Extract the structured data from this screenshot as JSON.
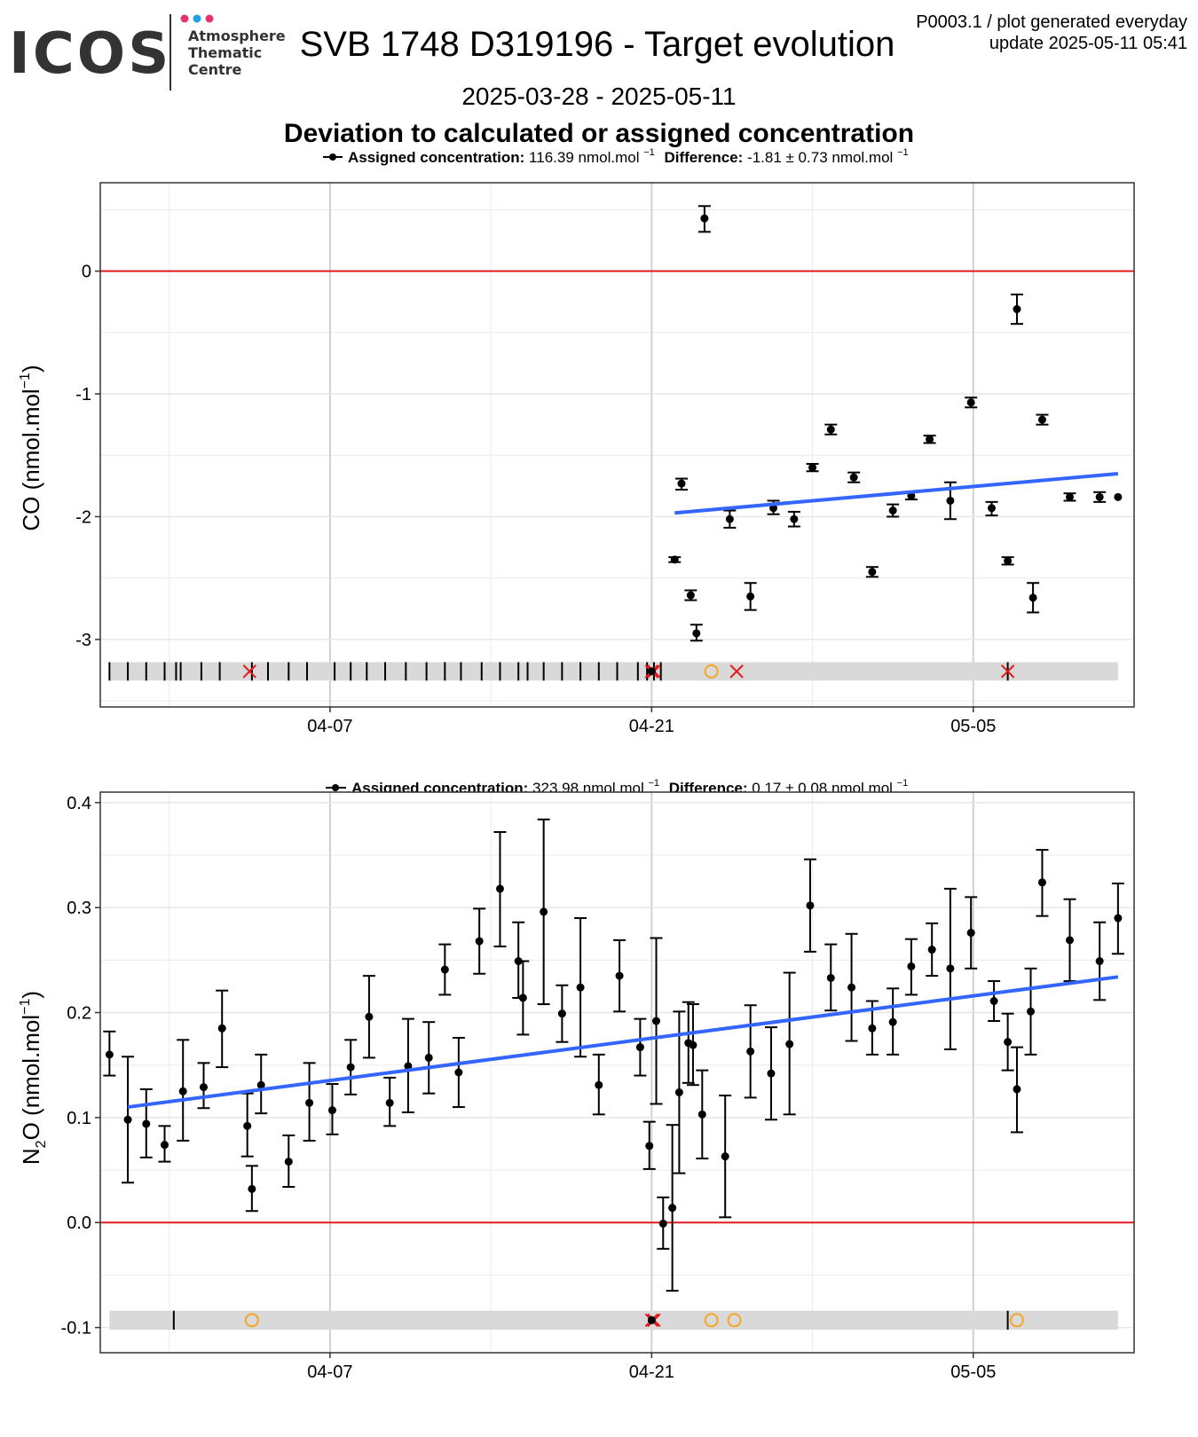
{
  "header": {
    "logo_text": "ICOS",
    "centre_lines": [
      "Atmosphere",
      "Thematic",
      "Centre"
    ],
    "title": "SVB 1748 D319196 - Target evolution",
    "daterange": "2025-03-28 - 2025-05-11",
    "meta_line1": "P0003.1 / plot generated everyday",
    "meta_line2": "update  2025-05-11 05:41",
    "subtitle": "Deviation to calculated or assigned concentration",
    "logo_dot_colors": [
      "#e6336f",
      "#1aa3e0",
      "#e6336f"
    ]
  },
  "colors": {
    "zero_line": "#e41a1c",
    "trend": "#3366ff",
    "points": "#000000",
    "flag_red": "#e41a1c",
    "flag_orange": "#f5a623",
    "band": "#d9d9d9",
    "grid": "#ebebeb"
  },
  "chart_data": [
    {
      "type": "scatter",
      "legend": {
        "label": "Assigned concentration:",
        "value": "116.39 nmol.mol",
        "unit_sup": "−1",
        "diff_label": "Difference:",
        "diff_value": "-1.81 ± 0.73 nmol.mol",
        "diff_sup": "−1"
      },
      "ylabel_main": "CO (nmol.mol",
      "ylabel_sup": "−1",
      "ylabel_end": ")",
      "xlim": [
        "2025-03-28",
        "2025-05-12"
      ],
      "ylim": [
        -3.55,
        0.72
      ],
      "x_ticks": [
        {
          "x": 10.0,
          "label": "04-07"
        },
        {
          "x": 24.0,
          "label": "04-21"
        },
        {
          "x": 38.0,
          "label": "05-05"
        }
      ],
      "y_ticks": [
        {
          "y": 0,
          "label": "0"
        },
        {
          "y": -1,
          "label": "-1"
        },
        {
          "y": -2,
          "label": "-2"
        },
        {
          "y": -3,
          "label": "-3"
        }
      ],
      "zero_line": 0,
      "trend": {
        "x": [
          25.0,
          44.3
        ],
        "y": [
          -1.97,
          -1.65
        ]
      },
      "points": [
        {
          "x": 24.0,
          "y": -3.26,
          "lo": -3.26,
          "hi": -3.26
        },
        {
          "x": 25.0,
          "y": -2.35,
          "lo": -2.37,
          "hi": -2.33
        },
        {
          "x": 25.3,
          "y": -1.73,
          "lo": -1.78,
          "hi": -1.69
        },
        {
          "x": 25.7,
          "y": -2.64,
          "lo": -2.68,
          "hi": -2.6
        },
        {
          "x": 25.95,
          "y": -2.95,
          "lo": -3.01,
          "hi": -2.88
        },
        {
          "x": 26.3,
          "y": 0.43,
          "lo": 0.32,
          "hi": 0.53
        },
        {
          "x": 27.4,
          "y": -2.02,
          "lo": -2.09,
          "hi": -1.95
        },
        {
          "x": 28.3,
          "y": -2.65,
          "lo": -2.76,
          "hi": -2.54
        },
        {
          "x": 29.3,
          "y": -1.93,
          "lo": -1.98,
          "hi": -1.87
        },
        {
          "x": 30.2,
          "y": -2.02,
          "lo": -2.08,
          "hi": -1.96
        },
        {
          "x": 31.0,
          "y": -1.6,
          "lo": -1.63,
          "hi": -1.57
        },
        {
          "x": 31.8,
          "y": -1.29,
          "lo": -1.33,
          "hi": -1.25
        },
        {
          "x": 32.8,
          "y": -1.68,
          "lo": -1.72,
          "hi": -1.64
        },
        {
          "x": 33.6,
          "y": -2.45,
          "lo": -2.49,
          "hi": -2.41
        },
        {
          "x": 34.5,
          "y": -1.95,
          "lo": -2.0,
          "hi": -1.9
        },
        {
          "x": 35.3,
          "y": -1.83,
          "lo": -1.86,
          "hi": -1.8
        },
        {
          "x": 36.1,
          "y": -1.37,
          "lo": -1.4,
          "hi": -1.34
        },
        {
          "x": 37.0,
          "y": -1.87,
          "lo": -2.02,
          "hi": -1.72
        },
        {
          "x": 37.9,
          "y": -1.07,
          "lo": -1.11,
          "hi": -1.03
        },
        {
          "x": 38.8,
          "y": -1.93,
          "lo": -1.99,
          "hi": -1.88
        },
        {
          "x": 39.5,
          "y": -2.36,
          "lo": -2.39,
          "hi": -2.33
        },
        {
          "x": 39.9,
          "y": -0.31,
          "lo": -0.43,
          "hi": -0.19
        },
        {
          "x": 40.6,
          "y": -2.66,
          "lo": -2.78,
          "hi": -2.54
        },
        {
          "x": 41.0,
          "y": -1.21,
          "lo": -1.25,
          "hi": -1.17
        },
        {
          "x": 42.2,
          "y": -1.84,
          "lo": -1.87,
          "hi": -1.81
        },
        {
          "x": 43.5,
          "y": -1.84,
          "lo": -1.88,
          "hi": -1.8
        },
        {
          "x": 44.3,
          "y": -1.84,
          "lo": -1.84,
          "hi": -1.84
        }
      ],
      "band": {
        "y_center": -3.26,
        "half_height": 0.075,
        "x_start": 0.4,
        "x_end": 44.3
      },
      "band_ticks": [
        0.4,
        1.2,
        2.0,
        2.8,
        3.3,
        3.5,
        4.4,
        5.2,
        6.6,
        7.3,
        8.2,
        9.0,
        10.2,
        10.9,
        11.6,
        12.4,
        13.3,
        14.2,
        15.0,
        15.7,
        16.6,
        17.4,
        18.2,
        18.6,
        19.3,
        20.1,
        20.9,
        21.7,
        22.5,
        23.4,
        23.8,
        24.1,
        24.4,
        39.5
      ],
      "band_x_marks": [
        6.5,
        24.0,
        24.1,
        27.7,
        39.5
      ],
      "band_o_marks": [
        26.6
      ]
    },
    {
      "type": "scatter",
      "legend": {
        "label": "Assigned concentration:",
        "value": "323.98 nmol.mol",
        "unit_sup": "−1",
        "diff_label": "Difference:",
        "diff_value": "0.17 ± 0.08 nmol.mol",
        "diff_sup": "−1"
      },
      "ylabel_main": "N",
      "ylabel_sub": "2",
      "ylabel_mid": "O (nmol.mol",
      "ylabel_sup": "−1",
      "ylabel_end": ")",
      "xlim": [
        "2025-03-28",
        "2025-05-12"
      ],
      "ylim": [
        -0.124,
        0.41
      ],
      "x_ticks": [
        {
          "x": 10.0,
          "label": "04-07"
        },
        {
          "x": 24.0,
          "label": "04-21"
        },
        {
          "x": 38.0,
          "label": "05-05"
        }
      ],
      "y_ticks": [
        {
          "y": 0.4,
          "label": "0.4"
        },
        {
          "y": 0.3,
          "label": "0.3"
        },
        {
          "y": 0.2,
          "label": "0.2"
        },
        {
          "y": 0.1,
          "label": "0.1"
        },
        {
          "y": 0.0,
          "label": "0.0"
        },
        {
          "y": -0.1,
          "label": "-0.1"
        }
      ],
      "zero_line": 0,
      "trend": {
        "x": [
          1.2,
          44.3
        ],
        "y": [
          0.11,
          0.234
        ]
      },
      "points": [
        {
          "x": 0.4,
          "y": 0.16,
          "lo": 0.14,
          "hi": 0.182
        },
        {
          "x": 1.2,
          "y": 0.098,
          "lo": 0.038,
          "hi": 0.158
        },
        {
          "x": 2.0,
          "y": 0.094,
          "lo": 0.062,
          "hi": 0.127
        },
        {
          "x": 2.8,
          "y": 0.074,
          "lo": 0.058,
          "hi": 0.092
        },
        {
          "x": 3.6,
          "y": 0.125,
          "lo": 0.078,
          "hi": 0.174
        },
        {
          "x": 4.5,
          "y": 0.129,
          "lo": 0.109,
          "hi": 0.152
        },
        {
          "x": 5.3,
          "y": 0.185,
          "lo": 0.148,
          "hi": 0.221
        },
        {
          "x": 6.4,
          "y": 0.092,
          "lo": 0.063,
          "hi": 0.123
        },
        {
          "x": 6.6,
          "y": 0.032,
          "lo": 0.011,
          "hi": 0.054
        },
        {
          "x": 7.0,
          "y": 0.131,
          "lo": 0.104,
          "hi": 0.16
        },
        {
          "x": 8.2,
          "y": 0.058,
          "lo": 0.034,
          "hi": 0.083
        },
        {
          "x": 9.1,
          "y": 0.114,
          "lo": 0.078,
          "hi": 0.152
        },
        {
          "x": 10.1,
          "y": 0.107,
          "lo": 0.084,
          "hi": 0.132
        },
        {
          "x": 10.9,
          "y": 0.148,
          "lo": 0.122,
          "hi": 0.174
        },
        {
          "x": 11.7,
          "y": 0.196,
          "lo": 0.157,
          "hi": 0.235
        },
        {
          "x": 12.6,
          "y": 0.114,
          "lo": 0.092,
          "hi": 0.138
        },
        {
          "x": 13.4,
          "y": 0.149,
          "lo": 0.105,
          "hi": 0.194
        },
        {
          "x": 14.3,
          "y": 0.157,
          "lo": 0.123,
          "hi": 0.191
        },
        {
          "x": 15.0,
          "y": 0.241,
          "lo": 0.217,
          "hi": 0.265
        },
        {
          "x": 15.6,
          "y": 0.143,
          "lo": 0.11,
          "hi": 0.176
        },
        {
          "x": 16.5,
          "y": 0.268,
          "lo": 0.237,
          "hi": 0.299
        },
        {
          "x": 17.4,
          "y": 0.318,
          "lo": 0.263,
          "hi": 0.372
        },
        {
          "x": 18.2,
          "y": 0.249,
          "lo": 0.214,
          "hi": 0.286
        },
        {
          "x": 18.4,
          "y": 0.214,
          "lo": 0.179,
          "hi": 0.249
        },
        {
          "x": 19.3,
          "y": 0.296,
          "lo": 0.208,
          "hi": 0.384
        },
        {
          "x": 20.1,
          "y": 0.199,
          "lo": 0.172,
          "hi": 0.226
        },
        {
          "x": 20.9,
          "y": 0.224,
          "lo": 0.158,
          "hi": 0.29
        },
        {
          "x": 21.7,
          "y": 0.131,
          "lo": 0.103,
          "hi": 0.16
        },
        {
          "x": 22.6,
          "y": 0.235,
          "lo": 0.201,
          "hi": 0.269
        },
        {
          "x": 23.5,
          "y": 0.167,
          "lo": 0.14,
          "hi": 0.194
        },
        {
          "x": 24.0,
          "y": -0.093,
          "lo": -0.093,
          "hi": -0.093
        },
        {
          "x": 23.9,
          "y": 0.073,
          "lo": 0.051,
          "hi": 0.096
        },
        {
          "x": 24.2,
          "y": 0.192,
          "lo": 0.113,
          "hi": 0.271
        },
        {
          "x": 24.5,
          "y": -0.001,
          "lo": -0.025,
          "hi": 0.024
        },
        {
          "x": 24.9,
          "y": 0.014,
          "lo": -0.065,
          "hi": 0.093
        },
        {
          "x": 25.2,
          "y": 0.124,
          "lo": 0.047,
          "hi": 0.201
        },
        {
          "x": 25.6,
          "y": 0.171,
          "lo": 0.133,
          "hi": 0.21
        },
        {
          "x": 25.8,
          "y": 0.169,
          "lo": 0.131,
          "hi": 0.208
        },
        {
          "x": 26.2,
          "y": 0.103,
          "lo": 0.061,
          "hi": 0.145
        },
        {
          "x": 27.2,
          "y": 0.063,
          "lo": 0.005,
          "hi": 0.121
        },
        {
          "x": 28.3,
          "y": 0.163,
          "lo": 0.119,
          "hi": 0.207
        },
        {
          "x": 29.2,
          "y": 0.142,
          "lo": 0.098,
          "hi": 0.186
        },
        {
          "x": 30.0,
          "y": 0.17,
          "lo": 0.103,
          "hi": 0.238
        },
        {
          "x": 30.9,
          "y": 0.302,
          "lo": 0.258,
          "hi": 0.346
        },
        {
          "x": 31.8,
          "y": 0.233,
          "lo": 0.202,
          "hi": 0.265
        },
        {
          "x": 32.7,
          "y": 0.224,
          "lo": 0.173,
          "hi": 0.275
        },
        {
          "x": 33.6,
          "y": 0.185,
          "lo": 0.16,
          "hi": 0.211
        },
        {
          "x": 34.5,
          "y": 0.191,
          "lo": 0.16,
          "hi": 0.223
        },
        {
          "x": 35.3,
          "y": 0.244,
          "lo": 0.217,
          "hi": 0.27
        },
        {
          "x": 36.2,
          "y": 0.26,
          "lo": 0.235,
          "hi": 0.285
        },
        {
          "x": 37.0,
          "y": 0.242,
          "lo": 0.165,
          "hi": 0.318
        },
        {
          "x": 37.9,
          "y": 0.276,
          "lo": 0.242,
          "hi": 0.31
        },
        {
          "x": 38.9,
          "y": 0.211,
          "lo": 0.192,
          "hi": 0.23
        },
        {
          "x": 39.5,
          "y": 0.172,
          "lo": 0.145,
          "hi": 0.199
        },
        {
          "x": 39.9,
          "y": 0.127,
          "lo": 0.086,
          "hi": 0.167
        },
        {
          "x": 40.5,
          "y": 0.201,
          "lo": 0.16,
          "hi": 0.242
        },
        {
          "x": 41.0,
          "y": 0.324,
          "lo": 0.292,
          "hi": 0.355
        },
        {
          "x": 42.2,
          "y": 0.269,
          "lo": 0.23,
          "hi": 0.308
        },
        {
          "x": 43.5,
          "y": 0.249,
          "lo": 0.212,
          "hi": 0.286
        },
        {
          "x": 44.3,
          "y": 0.29,
          "lo": 0.256,
          "hi": 0.323
        }
      ],
      "band": {
        "y_center": -0.093,
        "half_height": 0.009,
        "x_start": 0.4,
        "x_end": 44.3
      },
      "band_ticks": [
        3.2,
        39.5
      ],
      "band_x_marks": [
        24.0,
        24.1
      ],
      "band_o_marks": [
        6.6,
        26.6,
        27.6,
        39.9
      ]
    }
  ]
}
